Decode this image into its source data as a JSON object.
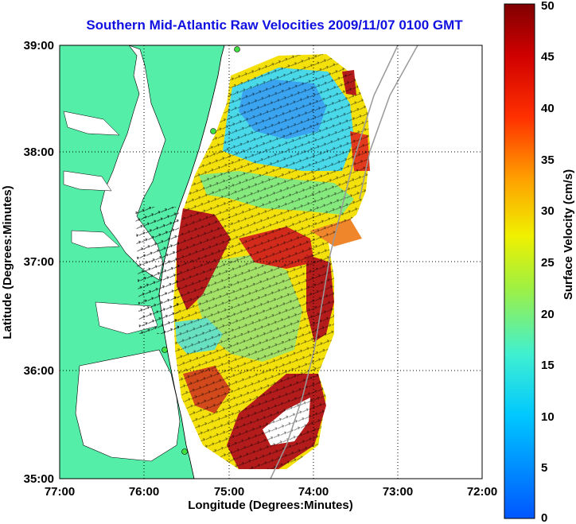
{
  "title": "Southern Mid-Atlantic Raw Velocities 2009/11/07 0100 GMT",
  "xlabel": "Longitude (Degrees:Minutes)",
  "ylabel": "Latitude (Degrees:Minutes)",
  "x_ticks": [
    "77:00",
    "76:00",
    "75:00",
    "74:00",
    "73:00",
    "72:00"
  ],
  "y_ticks": [
    "39:00",
    "38:00",
    "37:00",
    "36:00",
    "35:00"
  ],
  "colorbar": {
    "label": "Surface Velocity (cm/s)",
    "ticks": [
      "50",
      "45",
      "40",
      "35",
      "30",
      "25",
      "20",
      "15",
      "10",
      "5",
      "0"
    ]
  },
  "colors": {
    "land": "#55eea8",
    "title": "#1010e0"
  }
}
